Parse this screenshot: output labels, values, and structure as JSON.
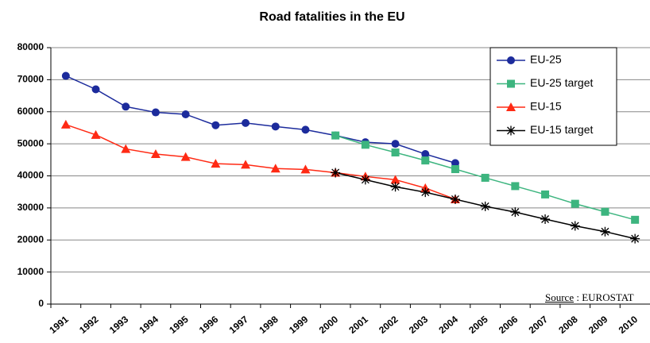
{
  "chart_data": {
    "type": "line",
    "title": "Road fatalities in the EU",
    "categories": [
      "1991",
      "1992",
      "1993",
      "1994",
      "1995",
      "1996",
      "1997",
      "1998",
      "1999",
      "2000",
      "2001",
      "2002",
      "2003",
      "2004",
      "2005",
      "2006",
      "2007",
      "2008",
      "2009",
      "2010"
    ],
    "series": [
      {
        "name": "EU-25",
        "color": "#1c2b9c",
        "marker": "circle",
        "values": [
          71200,
          67000,
          61600,
          59800,
          59200,
          55800,
          56500,
          55400,
          54400,
          52600,
          50500,
          50000,
          46800,
          44000,
          null,
          null,
          null,
          null,
          null,
          null
        ]
      },
      {
        "name": "EU-25 target",
        "color": "#3db57f",
        "marker": "square",
        "values": [
          null,
          null,
          null,
          null,
          null,
          null,
          null,
          null,
          null,
          52600,
          49700,
          47300,
          44800,
          42100,
          39400,
          36800,
          34200,
          31300,
          28800,
          26300
        ]
      },
      {
        "name": "EU-15",
        "color": "#ff2a14",
        "marker": "triangle",
        "values": [
          56000,
          52800,
          48400,
          46800,
          45900,
          43800,
          43500,
          42300,
          42000,
          41000,
          39800,
          38800,
          36200,
          32700,
          null,
          null,
          null,
          null,
          null,
          null
        ]
      },
      {
        "name": "EU-15 target",
        "color": "#000000",
        "marker": "asterisk",
        "values": [
          null,
          null,
          null,
          null,
          null,
          null,
          null,
          null,
          null,
          41000,
          38800,
          36600,
          34900,
          32700,
          30500,
          28700,
          26500,
          24400,
          22600,
          20400
        ]
      }
    ],
    "ylim": [
      0,
      80000
    ],
    "yticks": [
      0,
      10000,
      20000,
      30000,
      40000,
      50000,
      60000,
      70000,
      80000
    ],
    "grid": true,
    "legend": "upper right",
    "source_label": "Source",
    "source_name": ": EUROSTAT"
  }
}
